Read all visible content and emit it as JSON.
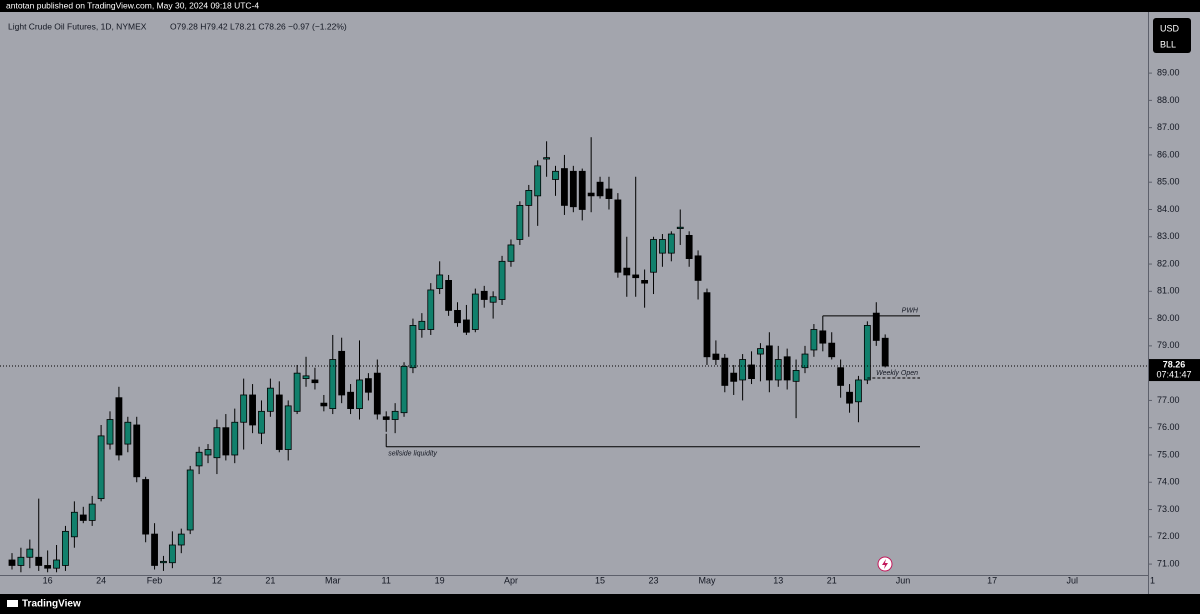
{
  "header": "antotan published on TradingView.com, May 30, 2024 09:18 UTC-4",
  "footer": "TradingView",
  "chart_data": {
    "type": "candlestick",
    "title": "Light Crude Oil Futures, 1D, NYMEX",
    "ohlc_legend": "O79.28 H79.42 L78.21 C78.26 −0.97 (−1.22%)",
    "currency": "USD",
    "unit": "BLL",
    "up_color": "#11806c",
    "down_color": "#000000",
    "background": "#a3a5ad",
    "last_price": 78.26,
    "countdown": "07:41:47",
    "categories": [
      null,
      null,
      null,
      null,
      "16",
      null,
      null,
      null,
      null,
      null,
      "24",
      null,
      null,
      null,
      null,
      null,
      "Feb",
      null,
      null,
      null,
      null,
      null,
      null,
      "12",
      null,
      null,
      null,
      null,
      null,
      "21",
      null,
      null,
      null,
      null,
      null,
      null,
      "Mar",
      null,
      null,
      null,
      null,
      null,
      "11",
      null,
      null,
      null,
      null,
      null,
      "19",
      null,
      null,
      null,
      null,
      null,
      null,
      null,
      "Apr",
      null,
      null,
      null,
      null,
      null,
      null,
      null,
      null,
      null,
      "15",
      null,
      null,
      null,
      null,
      null,
      "23",
      null,
      null,
      null,
      null,
      null,
      "May",
      null,
      null,
      null,
      null,
      null,
      null,
      null,
      "13",
      null,
      null,
      null,
      null,
      null,
      "21",
      null,
      null,
      null,
      null,
      null,
      null,
      null,
      "Jun",
      null,
      null,
      null,
      null,
      null,
      null,
      null,
      null,
      null,
      "17",
      null,
      null,
      null,
      null,
      null,
      null,
      null,
      null,
      "Jul",
      null,
      null,
      null,
      null,
      null,
      null,
      null,
      null,
      "1"
    ],
    "open": [
      71.15,
      70.95,
      71.25,
      71.25,
      70.95,
      70.85,
      70.95,
      72.0,
      72.8,
      72.6,
      73.4,
      75.4,
      77.1,
      75.4,
      76.1,
      74.1,
      72.1,
      71.05,
      71.05,
      71.7,
      72.25,
      74.6,
      75.0,
      74.9,
      76.0,
      75.0,
      76.2,
      77.2,
      75.8,
      76.6,
      77.2,
      75.2,
      76.6,
      77.8,
      77.75,
      76.9,
      76.7,
      78.8,
      77.3,
      76.7,
      77.8,
      78.0,
      76.4,
      76.3,
      76.55,
      78.2,
      79.6,
      79.6,
      81.1,
      81.4,
      80.3,
      79.95,
      79.6,
      81.0,
      80.6,
      80.7,
      82.1,
      82.9,
      84.15,
      84.5,
      85.85,
      85.1,
      85.5,
      85.4,
      85.4,
      84.6,
      85.0,
      84.75,
      84.35,
      81.85,
      81.6,
      81.4,
      81.7,
      82.4,
      82.4,
      83.3,
      83.05,
      82.3,
      80.95,
      78.7,
      78.55,
      78.0,
      77.75,
      78.3,
      78.7,
      79.0,
      77.75,
      78.6,
      77.7,
      78.2,
      78.85,
      79.55,
      79.1,
      78.2,
      77.3,
      76.95,
      77.75,
      80.2,
      79.28,
      null,
      null,
      null,
      null,
      null,
      null,
      null,
      null,
      null,
      null,
      null,
      null,
      null,
      null,
      null,
      null,
      null,
      null,
      null,
      null,
      null,
      null,
      null,
      null,
      null,
      null,
      null,
      null,
      null,
      null
    ],
    "high": [
      71.4,
      71.6,
      71.9,
      73.4,
      71.5,
      71.7,
      72.4,
      73.3,
      73.1,
      73.5,
      76.1,
      76.6,
      77.5,
      76.4,
      76.4,
      74.2,
      72.5,
      71.3,
      72.2,
      72.3,
      74.6,
      75.3,
      75.4,
      76.3,
      76.5,
      76.7,
      77.8,
      77.6,
      77.0,
      77.8,
      77.7,
      77.0,
      78.3,
      78.6,
      78.2,
      77.2,
      79.4,
      79.3,
      77.6,
      79.2,
      78.0,
      78.5,
      76.6,
      76.9,
      78.4,
      80.0,
      80.2,
      81.3,
      82.1,
      81.6,
      80.6,
      80.5,
      81.1,
      81.2,
      81.0,
      82.3,
      82.9,
      84.3,
      84.9,
      85.8,
      86.5,
      85.6,
      86.0,
      85.6,
      85.5,
      86.65,
      85.2,
      85.2,
      84.6,
      83.0,
      85.2,
      81.8,
      83.0,
      83.1,
      83.2,
      84.0,
      83.2,
      82.5,
      81.1,
      79.2,
      78.7,
      78.3,
      78.7,
      78.8,
      79.1,
      79.5,
      79.0,
      78.9,
      78.5,
      79.0,
      79.8,
      80.1,
      79.5,
      78.5,
      77.6,
      77.9,
      79.9,
      80.6,
      79.42,
      null,
      null,
      null,
      null,
      null,
      null,
      null,
      null,
      null,
      null,
      null,
      null,
      null,
      null,
      null,
      null,
      null,
      null,
      null,
      null,
      null,
      null,
      null,
      null,
      null,
      null,
      null,
      null,
      null,
      null
    ],
    "low": [
      70.8,
      70.7,
      70.85,
      70.75,
      70.7,
      70.7,
      70.75,
      71.6,
      72.5,
      72.4,
      73.3,
      75.2,
      74.8,
      75.1,
      74.0,
      71.8,
      70.8,
      70.75,
      70.85,
      71.4,
      72.1,
      74.3,
      74.7,
      74.3,
      74.8,
      74.7,
      75.2,
      75.8,
      75.4,
      76.4,
      75.1,
      74.8,
      76.5,
      77.5,
      77.4,
      76.6,
      76.5,
      76.9,
      76.5,
      76.3,
      77.0,
      76.3,
      75.85,
      75.8,
      76.4,
      78.0,
      79.3,
      79.4,
      80.9,
      80.1,
      79.7,
      79.4,
      79.5,
      80.4,
      80.0,
      80.5,
      81.9,
      82.7,
      83.0,
      83.4,
      85.2,
      84.5,
      83.8,
      83.9,
      83.6,
      83.9,
      84.4,
      84.0,
      81.5,
      80.8,
      80.8,
      80.4,
      80.9,
      81.9,
      82.1,
      82.7,
      81.9,
      80.7,
      78.3,
      78.3,
      77.3,
      77.2,
      77.0,
      77.6,
      77.7,
      77.3,
      77.5,
      77.4,
      76.35,
      78.0,
      78.6,
      78.8,
      78.5,
      77.1,
      76.55,
      76.2,
      77.6,
      79.0,
      78.21,
      null,
      null,
      null,
      null,
      null,
      null,
      null,
      null,
      null,
      null,
      null,
      null,
      null,
      null,
      null,
      null,
      null,
      null,
      null,
      null,
      null,
      null,
      null,
      null,
      null,
      null,
      null,
      null,
      null,
      null
    ],
    "close": [
      70.95,
      71.25,
      71.55,
      70.95,
      70.85,
      71.15,
      72.2,
      72.9,
      72.6,
      73.2,
      75.7,
      76.3,
      75.0,
      76.2,
      74.2,
      72.1,
      70.95,
      71.1,
      71.7,
      72.1,
      74.45,
      75.1,
      75.2,
      76.0,
      75.0,
      76.2,
      77.2,
      76.1,
      76.6,
      77.45,
      75.2,
      76.8,
      78.0,
      77.9,
      77.65,
      76.8,
      78.5,
      77.2,
      76.7,
      77.75,
      77.3,
      76.5,
      76.3,
      76.6,
      78.25,
      79.75,
      79.9,
      81.05,
      81.6,
      80.3,
      79.85,
      79.5,
      80.9,
      80.7,
      80.8,
      82.1,
      82.7,
      84.15,
      84.7,
      85.6,
      85.9,
      85.4,
      84.15,
      84.1,
      84.0,
      84.5,
      84.5,
      84.4,
      81.7,
      81.6,
      81.5,
      81.3,
      82.9,
      82.9,
      83.1,
      83.35,
      82.2,
      81.4,
      78.6,
      78.5,
      77.55,
      77.7,
      78.5,
      77.8,
      78.9,
      77.75,
      78.5,
      77.75,
      78.1,
      78.7,
      79.6,
      79.1,
      78.6,
      77.55,
      76.9,
      77.75,
      79.75,
      79.2,
      78.26,
      null,
      null,
      null,
      null,
      null,
      null,
      null,
      null,
      null,
      null,
      null,
      null,
      null,
      null,
      null,
      null,
      null,
      null,
      null,
      null,
      null,
      null,
      null,
      null,
      null,
      null,
      null,
      null,
      null,
      null
    ],
    "ylim": [
      70.6,
      91.24
    ],
    "yticks": [
      {
        "value": 71,
        "label": "71.00"
      },
      {
        "value": 72,
        "label": "72.00"
      },
      {
        "value": 73,
        "label": "73.00"
      },
      {
        "value": 74,
        "label": "74.00"
      },
      {
        "value": 75,
        "label": "75.00"
      },
      {
        "value": 76,
        "label": "76.00"
      },
      {
        "value": 77,
        "label": "77.00"
      },
      {
        "value": 79,
        "label": "79.00"
      },
      {
        "value": 80,
        "label": "80.00"
      },
      {
        "value": 81,
        "label": "81.00"
      },
      {
        "value": 82,
        "label": "82.00"
      },
      {
        "value": 83,
        "label": "83.00"
      },
      {
        "value": 84,
        "label": "84.00"
      },
      {
        "value": 85,
        "label": "85.00"
      },
      {
        "value": 86,
        "label": "86.00"
      },
      {
        "value": 87,
        "label": "87.00"
      },
      {
        "value": 88,
        "label": "88.00"
      },
      {
        "value": 89,
        "label": "89.00"
      }
    ],
    "grid": false,
    "annotations": [
      {
        "label": "sellside liquidity",
        "value": 75.3
      },
      {
        "label": "PWH",
        "value": 80.1
      },
      {
        "label": "Weekly Open",
        "value": 77.82
      }
    ]
  }
}
